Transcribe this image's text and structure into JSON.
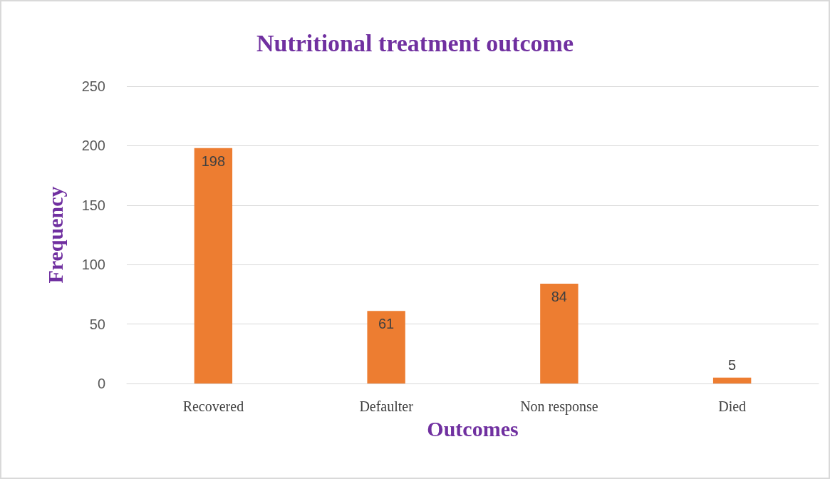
{
  "chart_data": {
    "type": "bar",
    "title": "Nutritional treatment outcome",
    "xlabel": "Outcomes",
    "ylabel": "Frequency",
    "categories": [
      "Recovered",
      "Defaulter",
      "Non response",
      "Died"
    ],
    "values": [
      198,
      61,
      84,
      5
    ],
    "color": "#ed7d31",
    "ylim": [
      0,
      250
    ],
    "yticks": [
      0,
      50,
      100,
      150,
      200,
      250
    ],
    "grid": "y",
    "data_labels": true
  }
}
